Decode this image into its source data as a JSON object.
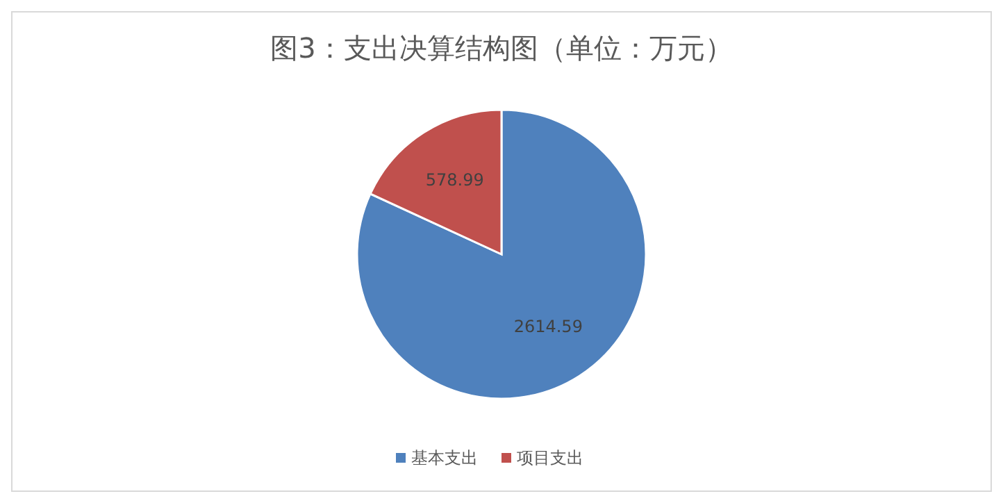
{
  "chart_data": {
    "type": "pie",
    "title": "图3：支出决算结构图（单位：万元）",
    "categories": [
      "基本支出",
      "项目支出"
    ],
    "values": [
      2614.59,
      578.99
    ],
    "colors": [
      "#4f81bd",
      "#c0504d"
    ],
    "data_labels": true,
    "legend": "bottom"
  }
}
